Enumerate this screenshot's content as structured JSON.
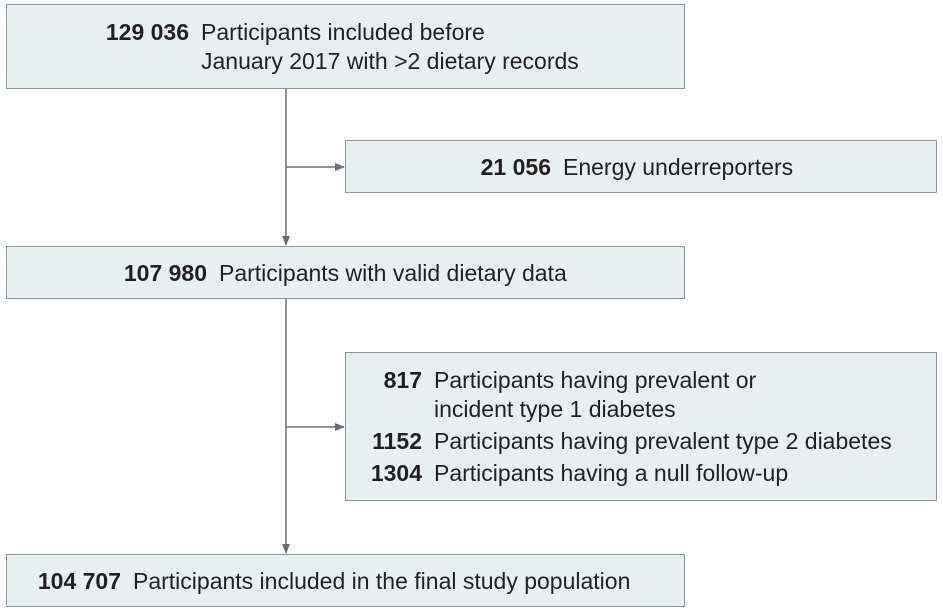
{
  "boxes": {
    "start": {
      "count": "129 036",
      "line1": "Participants included before",
      "line2": "January 2017 with >2 dietary records"
    },
    "exclusion1": {
      "count": "21 056",
      "text": "Energy underreporters"
    },
    "valid": {
      "count": "107 980",
      "text": "Participants with valid dietary data"
    },
    "exclusion2": {
      "items": [
        {
          "count": "817",
          "line1": "Participants having prevalent or",
          "line2": "incident type 1 diabetes"
        },
        {
          "count": "1152",
          "text": "Participants having prevalent type 2 diabetes"
        },
        {
          "count": "1304",
          "text": "Participants having a null follow-up"
        }
      ]
    },
    "final": {
      "count": "104 707",
      "text": "Participants included in the final study population"
    }
  },
  "colors": {
    "box_fill": "#e9eff0",
    "box_border": "#8f9496",
    "arrow": "#6d6e71",
    "text": "#231f20"
  }
}
